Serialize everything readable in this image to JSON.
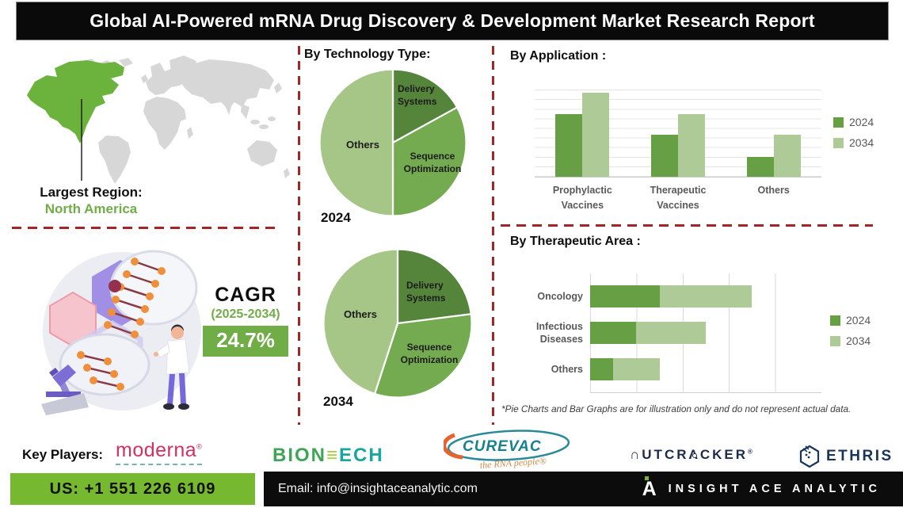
{
  "title": "Global AI-Powered mRNA Drug Discovery & Development Market Research Report",
  "region": {
    "label": "Largest Region:",
    "value": "North America"
  },
  "cagr": {
    "label": "CAGR",
    "period": "(2025-2034)",
    "value": "24.7%"
  },
  "technology_heading": "By Technology Type:",
  "footnote": "*Pie Charts and Bar Graphs are for illustration only and do not represent actual data.",
  "key_players": {
    "label": "Key Players:",
    "companies": [
      "moderna",
      "BIONTECH",
      "CureVac",
      "Nutcracker",
      "Ethris"
    ]
  },
  "logos": {
    "moderna": "moderna",
    "moderna_reg": "®",
    "biontech_a": "BION",
    "biontech_t": "≡",
    "biontech_b": "ECH",
    "curevac": "CUREVAC",
    "curevac_tagline": "the RNA people®",
    "nutcracker_a": "∩UTCR",
    "nutcracker_mid": "Λ",
    "nutcracker_b": "CKER",
    "nutcracker_reg": "®",
    "ethris": "ETHRIS"
  },
  "contact": {
    "phone": "US: +1 551 226 6109",
    "email": "Email: info@insightaceanalytic.com",
    "brand": "INSIGHT ACE ANALYTIC",
    "brand_mark": "A"
  },
  "chart_data": [
    {
      "type": "pie",
      "title": "By Technology Type — 2024",
      "year": "2024",
      "labels": [
        "Delivery Systems",
        "Sequence Optimization",
        "Others"
      ],
      "values": [
        17,
        33,
        50
      ],
      "colors": [
        "#55843b",
        "#74aa50",
        "#a6c687"
      ],
      "note": "illustration only, not actual data"
    },
    {
      "type": "pie",
      "title": "By Technology Type — 2034",
      "year": "2034",
      "labels": [
        "Delivery Systems",
        "Sequence Optimization",
        "Others"
      ],
      "values": [
        23,
        32,
        45
      ],
      "colors": [
        "#55843b",
        "#74aa50",
        "#a6c687"
      ],
      "note": "illustration only, not actual data"
    },
    {
      "type": "bar",
      "title": "By Application :",
      "categories": [
        "Prophylactic Vaccines",
        "Therapeutic Vaccines",
        "Others"
      ],
      "series": [
        {
          "name": "2024",
          "color": "#679f44",
          "values": [
            65,
            44,
            21
          ]
        },
        {
          "name": "2034",
          "color": "#aecb97",
          "values": [
            88,
            65,
            44
          ]
        }
      ],
      "ylim": [
        0,
        100
      ],
      "grid": true,
      "legend_position": "right",
      "note": "illustration only, not actual data"
    },
    {
      "type": "bar-horizontal-stacked",
      "title": "By Therapeutic Area :",
      "categories": [
        "Oncology",
        "Infectious Diseases",
        "Others"
      ],
      "series": [
        {
          "name": "2024",
          "color": "#679f44",
          "values": [
            30,
            20,
            10
          ]
        },
        {
          "name": "2034",
          "color": "#aecb97",
          "values": [
            40,
            30,
            20
          ]
        }
      ],
      "xlim": [
        0,
        100
      ],
      "grid": true,
      "legend_position": "right",
      "note": "illustration only, not actual data"
    }
  ]
}
